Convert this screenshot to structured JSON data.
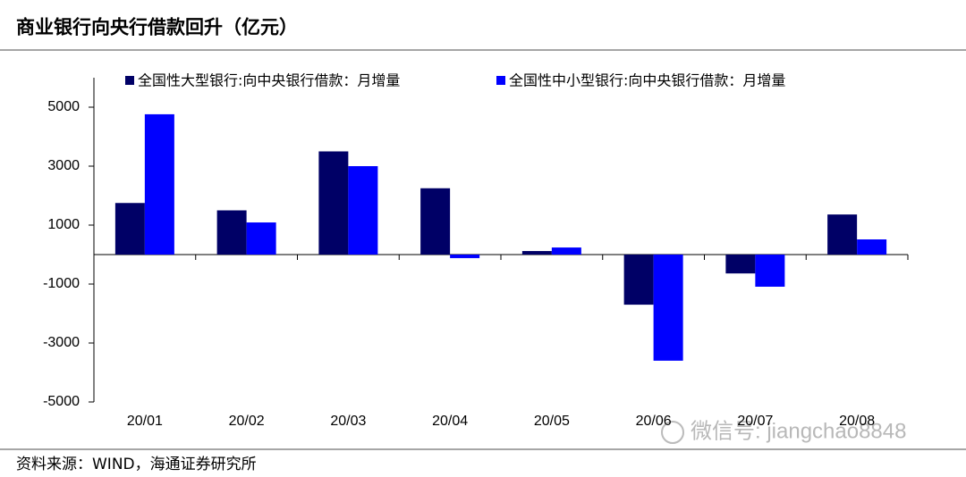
{
  "chart_data": {
    "type": "bar",
    "title": "商业银行向央行借款回升（亿元）",
    "categories": [
      "20/01",
      "20/02",
      "20/03",
      "20/04",
      "20/05",
      "20/06",
      "20/07",
      "20/08"
    ],
    "series": [
      {
        "name": "全国性大型银行:向中央银行借款：月增量",
        "color": "#000066",
        "values": [
          1750,
          1500,
          3500,
          2250,
          120,
          -1700,
          -640,
          1360
        ]
      },
      {
        "name": "全国性中小型银行:向中央银行借款：月增量",
        "color": "#0000ff",
        "values": [
          4760,
          1090,
          3000,
          -120,
          240,
          -3600,
          -1090,
          515
        ]
      }
    ],
    "ylim": [
      -5000,
      6000
    ],
    "yticks": [
      -5000,
      -3000,
      -1000,
      1000,
      3000,
      5000
    ],
    "legend": "top",
    "source": "资料来源：WIND，海通证券研究所",
    "watermark": "微信号: jiangchao8848"
  }
}
